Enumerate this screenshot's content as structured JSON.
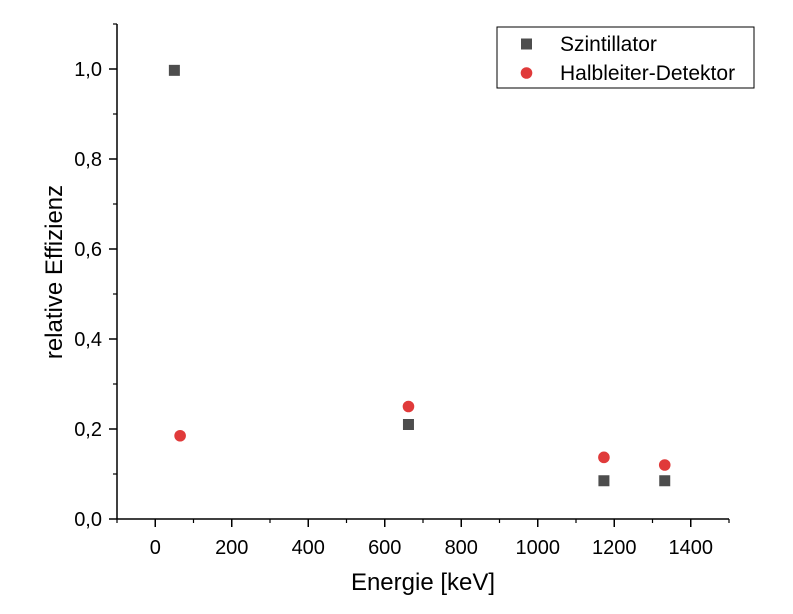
{
  "chart_data": {
    "type": "scatter",
    "xlabel": "Energie [keV]",
    "ylabel": "relative Effizienz",
    "xlim": [
      -100,
      1500
    ],
    "ylim": [
      0,
      1.1
    ],
    "x_ticks": [
      0,
      200,
      400,
      600,
      800,
      1000,
      1200,
      1400
    ],
    "x_tick_labels": [
      "0",
      "200",
      "400",
      "600",
      "800",
      "1000",
      "1200",
      "1400"
    ],
    "y_ticks": [
      0,
      0.2,
      0.4,
      0.6,
      0.8,
      1.0
    ],
    "y_tick_labels": [
      "0,0",
      "0,2",
      "0,4",
      "0,6",
      "0,8",
      "1,0"
    ],
    "grid": false,
    "legend_position": "top-right",
    "series": [
      {
        "name": "Szintillator",
        "marker": "square",
        "color": "#4d4d4d",
        "x": [
          50,
          662,
          1173,
          1332
        ],
        "y": [
          0.997,
          0.21,
          0.085,
          0.085
        ]
      },
      {
        "name": "Halbleiter-Detektor",
        "marker": "circle",
        "color": "#e03a3a",
        "x": [
          65,
          662,
          1173,
          1332
        ],
        "y": [
          0.185,
          0.25,
          0.137,
          0.12
        ]
      }
    ]
  }
}
